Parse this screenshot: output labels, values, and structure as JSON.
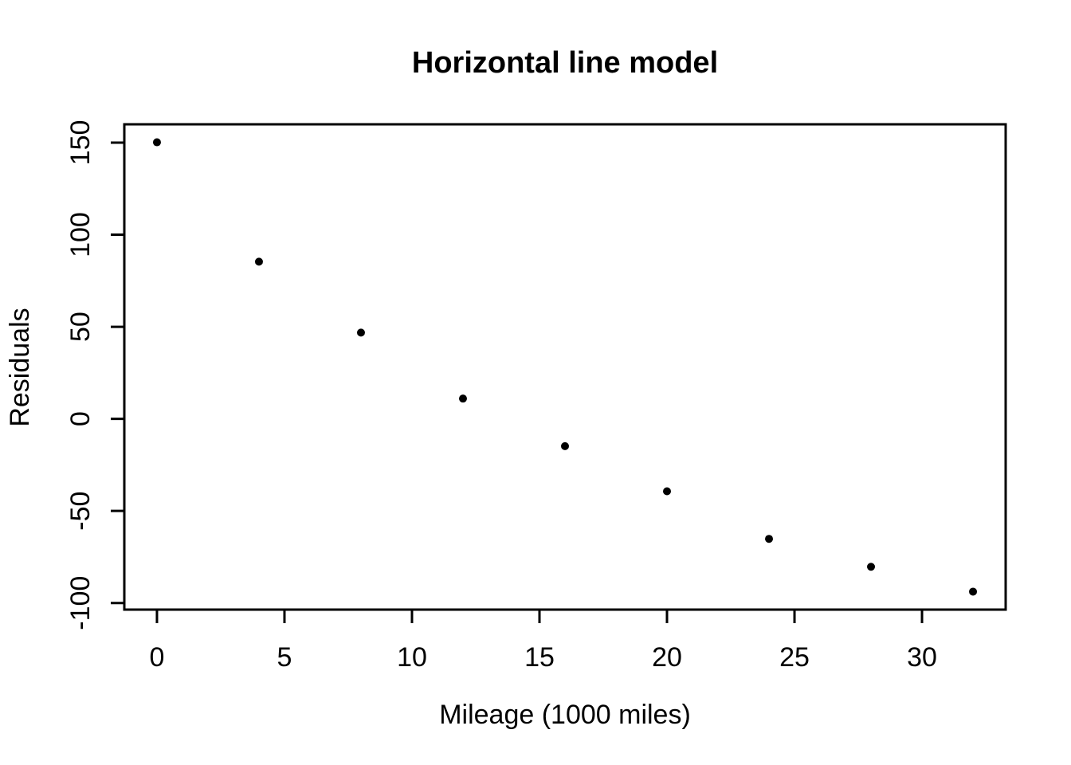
{
  "chart_data": {
    "type": "scatter",
    "title": "Horizontal line model",
    "xlabel": "Mileage (1000 miles)",
    "ylabel": "Residuals",
    "series": [
      {
        "name": "residuals",
        "x": [
          0,
          4,
          8,
          12,
          16,
          20,
          24,
          28,
          32
        ],
        "y": [
          150.18,
          85.35,
          46.85,
          11.02,
          -14.82,
          -39.32,
          -65.15,
          -80.32,
          -93.82
        ]
      }
    ],
    "xticks": [
      0,
      5,
      10,
      15,
      20,
      25,
      30
    ],
    "yticks": [
      150,
      100,
      50,
      0,
      -50,
      -100
    ],
    "xlim": [
      -1.28,
      33.28
    ],
    "ylim": [
      -103.58,
      159.94
    ],
    "grid": false,
    "legend": "none",
    "marker": "filled-circle",
    "point_color": "#000000",
    "axis_color": "#000000",
    "background": "#ffffff"
  }
}
